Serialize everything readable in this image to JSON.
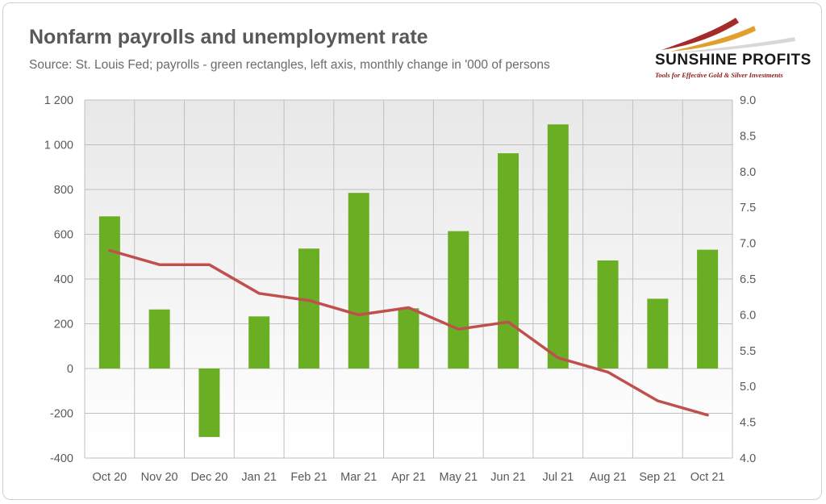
{
  "header": {
    "title": "Nonfarm payrolls and unemployment rate",
    "subtitle": "Source: St. Louis Fed; payrolls - green rectangles, left axis, monthly change in '000 of persons"
  },
  "logo": {
    "name": "SUNSHINE PROFITS",
    "tagline": "Tools for Effective Gold & Silver Investments"
  },
  "colors": {
    "bars": "#6aaf23",
    "line": "#c0504d",
    "grid": "#bfbfbf",
    "text": "#595959"
  },
  "chart_data": {
    "type": "bar",
    "categories": [
      "Oct 20",
      "Nov 20",
      "Dec 20",
      "Jan 21",
      "Feb 21",
      "Mar 21",
      "Apr 21",
      "May 21",
      "Jun 21",
      "Jul 21",
      "Aug 21",
      "Sep 21",
      "Oct 21"
    ],
    "series": [
      {
        "type": "bar",
        "axis": "left",
        "values": [
          680,
          264,
          -306,
          233,
          536,
          785,
          269,
          614,
          962,
          1091,
          483,
          312,
          531
        ]
      },
      {
        "type": "line",
        "axis": "right",
        "values": [
          6.9,
          6.7,
          6.7,
          6.3,
          6.2,
          6.0,
          6.1,
          5.8,
          5.9,
          5.4,
          5.2,
          4.8,
          4.6
        ]
      }
    ],
    "y_left": {
      "min": -400,
      "max": 1200,
      "ticks": [
        -400,
        -200,
        0,
        200,
        400,
        600,
        800,
        1000,
        1200
      ],
      "tick_labels": [
        "-400",
        "-200",
        "0",
        "200",
        "400",
        "600",
        "800",
        "1 000",
        "1 200"
      ]
    },
    "y_right": {
      "min": 4.0,
      "max": 9.0,
      "ticks": [
        4.0,
        4.5,
        5.0,
        5.5,
        6.0,
        6.5,
        7.0,
        7.5,
        8.0,
        8.5,
        9.0
      ],
      "tick_labels": [
        "4.0",
        "4.5",
        "5.0",
        "5.5",
        "6.0",
        "6.5",
        "7.0",
        "7.5",
        "8.0",
        "8.5",
        "9.0"
      ]
    },
    "grid": true,
    "legend": "none"
  }
}
